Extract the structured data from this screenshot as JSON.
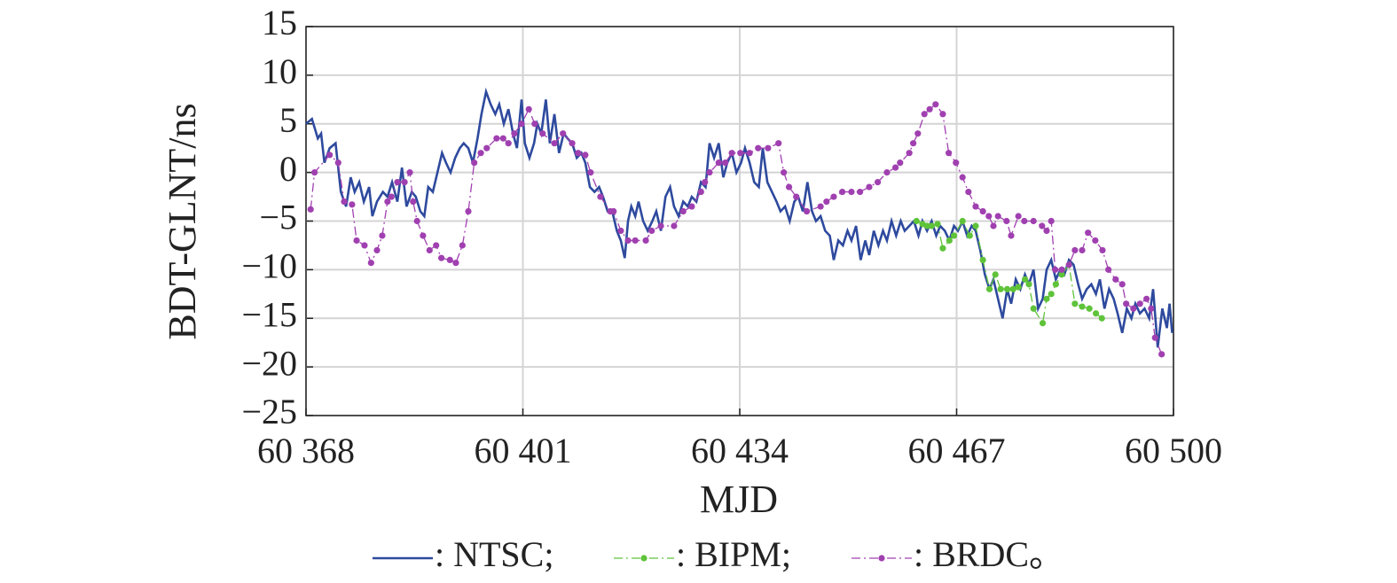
{
  "chart_data": {
    "type": "line",
    "xlabel": "MJD",
    "ylabel": "BDT-GLNT/ns",
    "xlim": [
      60368,
      60500
    ],
    "xticks": [
      {
        "value": 60368,
        "label": "60 368"
      },
      {
        "value": 60401,
        "label": "60 401"
      },
      {
        "value": 60434,
        "label": "60 434"
      },
      {
        "value": 60467,
        "label": "60 467"
      },
      {
        "value": 60500,
        "label": "60 500"
      }
    ],
    "ylim": [
      -25,
      15
    ],
    "yticks": [
      15,
      10,
      5,
      0,
      {
        "value": -5,
        "label": "−5"
      },
      {
        "value": -10,
        "label": "−10"
      },
      {
        "value": -15,
        "label": "−15"
      },
      {
        "value": -20,
        "label": "−20"
      },
      {
        "value": -25,
        "label": "−25"
      }
    ],
    "grid": true,
    "series": [
      {
        "name": ": NTSC;",
        "color": "#2e4a9e",
        "style": "solid",
        "markers": false,
        "x": [
          60368.0,
          60368.9,
          60369.8,
          60370.3,
          60370.8,
          60371.6,
          60372.5,
          60373.3,
          60374.1,
          60374.8,
          60375.4,
          60376.1,
          60376.8,
          60377.6,
          60378.1,
          60378.8,
          60379.7,
          60380.4,
          60381.1,
          60381.9,
          60382.6,
          60383.3,
          60384.1,
          60384.7,
          60385.4,
          60386.0,
          60386.6,
          60387.3,
          60388.0,
          60388.7,
          60389.3,
          60390.0,
          60390.7,
          60391.4,
          60392.0,
          60392.7,
          60393.4,
          60394.1,
          60394.7,
          60395.4,
          60396.1,
          60396.8,
          60397.4,
          60398.1,
          60398.8,
          60399.5,
          60400.1,
          60400.8,
          60401.3,
          60402.0,
          60402.7,
          60403.2,
          60403.8,
          60404.5,
          60405.1,
          60405.8,
          60406.5,
          60407.2,
          60407.8,
          60408.5,
          60409.2,
          60409.9,
          60410.5,
          60411.2,
          60411.9,
          60412.6,
          60413.2,
          60413.9,
          60414.6,
          60415.3,
          60415.9,
          60416.5,
          60417.0,
          60417.5,
          60418.1,
          60418.6,
          60419.3,
          60420.0,
          60420.7,
          60421.3,
          60422.0,
          60422.7,
          60423.4,
          60424.0,
          60424.7,
          60425.4,
          60426.1,
          60426.7,
          60427.4,
          60428.1,
          60428.8,
          60429.4,
          60430.1,
          60430.8,
          60431.5,
          60432.1,
          60432.8,
          60433.5,
          60434.2,
          60434.8,
          60435.5,
          60436.2,
          60436.9,
          60437.5,
          60438.2,
          60438.9,
          60439.6,
          60440.2,
          60440.9,
          60441.6,
          60442.3,
          60442.9,
          60443.6,
          60444.3,
          60445.0,
          60445.6,
          60446.3,
          60447.0,
          60447.7,
          60448.3,
          60449.0,
          60449.7,
          60450.4,
          60451.0,
          60451.7,
          60452.4,
          60453.1,
          60453.7,
          60454.4,
          60455.1,
          60455.8,
          60456.4,
          60457.1,
          60457.8,
          60458.5,
          60459.1,
          60459.8,
          60460.5,
          60461.2,
          60461.8,
          60462.5,
          60463.2,
          60463.9,
          60464.5,
          60465.2,
          60465.9,
          60466.6,
          60467.2,
          60467.9,
          60468.6,
          60469.3,
          60469.9,
          60470.6,
          60471.3,
          60472.0,
          60472.6,
          60473.3,
          60474.0,
          60474.7,
          60475.3,
          60476.0,
          60476.7,
          60477.4,
          60478.0,
          60478.7,
          60479.4,
          60480.1,
          60480.7,
          60481.4,
          60482.1,
          60482.8,
          60483.4,
          60484.1,
          60484.8,
          60485.5,
          60486.1,
          60486.8,
          60487.5,
          60488.2,
          60488.8,
          60489.5,
          60490.2,
          60490.9,
          60491.5,
          60492.2,
          60492.9,
          60493.6,
          60494.2,
          60494.9,
          60495.6,
          60496.3,
          60496.9,
          60497.6,
          60498.3,
          60499.0,
          60499.4,
          60499.8
        ],
        "values": [
          5,
          5.5,
          3.5,
          4,
          1,
          2.5,
          3,
          -2,
          -3.5,
          -0.5,
          -2,
          -1,
          -3,
          -1.5,
          -4.5,
          -3,
          -2,
          -2.5,
          -1,
          -3,
          0.5,
          -3.5,
          -2,
          -2.5,
          -4,
          -4.5,
          -1.5,
          -2,
          0,
          2,
          1,
          0,
          1.5,
          2.5,
          3,
          2.5,
          1,
          3.5,
          6,
          8.3,
          7,
          6,
          7,
          5,
          6.5,
          4,
          2.5,
          7.5,
          3,
          1.5,
          3,
          5,
          4,
          7.5,
          3,
          6,
          2,
          4,
          3.5,
          3,
          1.5,
          2,
          1,
          -1.5,
          -2,
          -1.5,
          -2.5,
          -4,
          -4,
          -6,
          -7,
          -8.8,
          -5,
          -3.5,
          -4.5,
          -3,
          -5,
          -6,
          -5,
          -4,
          -6,
          -2.5,
          -1.5,
          -3.5,
          -4.5,
          -3,
          -3.5,
          -2.5,
          -3,
          -1,
          -1.5,
          3,
          1.5,
          3,
          -0.5,
          1,
          2,
          0,
          1,
          2.5,
          1,
          -1,
          -1.5,
          2.5,
          -1,
          -2,
          -3,
          -4,
          -3.5,
          -5,
          -3,
          -2.5,
          -4,
          -1,
          -4,
          -5,
          -4.5,
          -6,
          -6.5,
          -9,
          -7,
          -7.5,
          -6,
          -7,
          -5.5,
          -9,
          -7,
          -8.5,
          -6,
          -7.5,
          -6,
          -7,
          -5,
          -6.5,
          -5,
          -6,
          -5.5,
          -5,
          -6.5,
          -5,
          -6,
          -5,
          -6.5,
          -5.5,
          -6,
          -7,
          -5.5,
          -6,
          -5,
          -6.5,
          -5.5,
          -6,
          -8,
          -10.5,
          -12,
          -11,
          -13,
          -15,
          -12,
          -13.5,
          -11,
          -12,
          -10.5,
          -11.5,
          -10,
          -14,
          -13,
          -10,
          -9,
          -11,
          -10,
          -10.5,
          -9,
          -9.5,
          -11.5,
          -13,
          -12,
          -11.5,
          -12.5,
          -11,
          -14,
          -12,
          -13,
          -14.5,
          -16.5,
          -14,
          -15,
          -13.5,
          -14.5,
          -14,
          -15,
          -12,
          -18,
          -14,
          -16,
          -13.5,
          -16.5
        ]
      },
      {
        "name": ": BIPM;",
        "color": "#5fc33a",
        "style": "dashdot",
        "markers": true,
        "x": [
          60460.9,
          60461.8,
          60462.5,
          60463.2,
          60464.1,
          60464.9,
          60465.9,
          60466.6,
          60467.9,
          60469.0,
          60469.9,
          60471.0,
          60472.0,
          60472.9,
          60473.7,
          60474.7,
          60475.6,
          60476.4,
          60477.4,
          60478.0,
          60478.7,
          60480.1,
          60480.7,
          60481.4,
          60482.1,
          60483.0,
          60484.1,
          60485.0,
          60486.1,
          60487.2,
          60488.2,
          60489.1
        ],
        "values": [
          -5,
          -5.3,
          -5.5,
          -5.5,
          -5.3,
          -7.8,
          -7,
          -6.5,
          -5,
          -6.5,
          -5.5,
          -9,
          -12,
          -10.5,
          -12,
          -12,
          -12,
          -11.8,
          -11,
          -11.5,
          -14,
          -15.5,
          -13,
          -12.5,
          -11.5,
          -10.5,
          -9.5,
          -13.5,
          -13.8,
          -14,
          -14.5,
          -15
        ]
      },
      {
        "name": ": BRDC。",
        "color": "#a040b0",
        "style": "dashdot",
        "markers": true,
        "x": [
          60368.7,
          60369.3,
          60371.6,
          60372.9,
          60373.8,
          60375.0,
          60375.7,
          60376.9,
          60377.9,
          60378.8,
          60379.6,
          60380.4,
          60381.0,
          60381.9,
          60383.0,
          60383.8,
          60384.3,
          60384.9,
          60385.8,
          60386.8,
          60387.8,
          60388.6,
          60389.9,
          60390.8,
          60391.8,
          60392.7,
          60393.6,
          60394.6,
          60395.5,
          60397.0,
          60398.0,
          60398.8,
          60399.7,
          60400.8,
          60401.9,
          60402.8,
          60404.0,
          60405.8,
          60407.1,
          60408.5,
          60409.4,
          60410.5,
          60411.3,
          60412.8,
          60414.3,
          60414.8,
          60415.9,
          60417.0,
          60418.1,
          60419.7,
          60420.6,
          60422.0,
          60424.0,
          60425.4,
          60426.7,
          60428.1,
          60428.7,
          60429.4,
          60430.8,
          60431.8,
          60432.8,
          60434.1,
          60435.5,
          60436.8,
          60438.3,
          60439.9,
          60440.7,
          60441.5,
          60442.6,
          60444.2,
          60446.3,
          60447.2,
          60448.3,
          60449.6,
          60451.0,
          60452.3,
          60453.7,
          60455.0,
          60456.4,
          60457.7,
          60458.4,
          60459.8,
          60460.4,
          60461.1,
          60462.1,
          60462.9,
          60463.8,
          60464.9,
          60465.8,
          60466.9,
          60467.9,
          60468.8,
          60469.9,
          60471.0,
          60471.9,
          60472.6,
          60473.3,
          60474.6,
          60475.3,
          60476.4,
          60477.3,
          60478.7,
          60480.0,
          60480.7,
          60481.4,
          60482.0,
          60483.0,
          60484.1,
          60485.0,
          60486.1,
          60487.0,
          60488.1,
          60489.2,
          60490.1,
          60491.2,
          60492.2,
          60492.8,
          60493.9,
          60494.9,
          60495.9,
          60496.6,
          60497.2,
          60498.2
        ],
        "values": [
          -3.8,
          0,
          1.8,
          1,
          -3,
          -3.3,
          -7,
          -7.5,
          -9.3,
          -8,
          -6.5,
          -3,
          -2.5,
          -1,
          -1,
          0,
          -3,
          -5,
          -6.5,
          -8,
          -7.5,
          -8.8,
          -9,
          -9.3,
          -7.5,
          -4,
          1,
          2,
          2.5,
          3.5,
          3.5,
          3,
          4,
          5,
          6.5,
          5,
          4,
          3,
          4,
          3,
          2,
          1.8,
          0,
          -2.5,
          -4,
          -4,
          -6,
          -7,
          -7,
          -7,
          -6,
          -5.5,
          -5.5,
          -4,
          -3.5,
          -2,
          -1,
          0,
          1,
          1,
          2,
          2,
          2,
          2.5,
          2.5,
          3,
          0,
          -1.5,
          -2.5,
          -4,
          -3.5,
          -3,
          -2.5,
          -2,
          -2,
          -2,
          -1.5,
          -1,
          0,
          0.5,
          1,
          2,
          3,
          4,
          6,
          6.5,
          7,
          6,
          2,
          1,
          -0.5,
          -2,
          -3.5,
          -4,
          -4.5,
          -5.5,
          -4.5,
          -5,
          -6.5,
          -4.5,
          -5,
          -5,
          -5.5,
          -6,
          -5,
          -10,
          -10,
          -9.5,
          -8,
          -8,
          -6.2,
          -7,
          -8,
          -10,
          -11,
          -11.5,
          -13.5,
          -14,
          -13.5,
          -13,
          -14,
          -17,
          -18.7
        ]
      }
    ]
  }
}
